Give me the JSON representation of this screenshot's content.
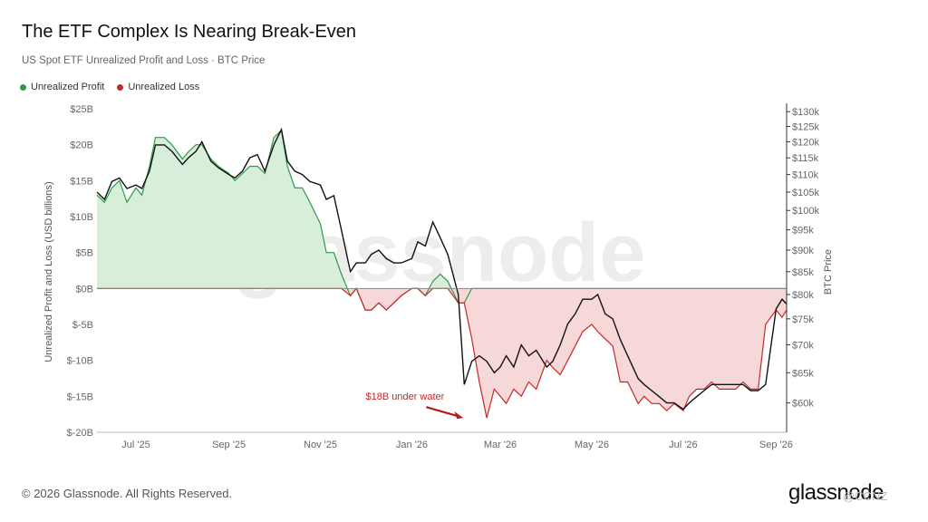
{
  "header": {
    "title": "The ETF Complex Is Nearing Break-Even",
    "subtitle": "US Spot ETF Unrealized Profit and Loss · BTC Price"
  },
  "legend": {
    "profit_label": "Unrealized Profit",
    "loss_label": "Unrealized Loss"
  },
  "colors": {
    "profit": "#2e9a46",
    "profit_fill": "#d7eedb",
    "loss": "#c62828",
    "loss_fill": "#f6d8d8",
    "btc": "#111111",
    "zero_line": "#888888"
  },
  "watermark": "glassnode",
  "annotation": {
    "text": "$18B under water",
    "date": "2026-02-05",
    "value": -18
  },
  "footer": {
    "copyright": "© 2026 Glassnode. All Rights Reserved.",
    "logo": "glassnode",
    "mark": "@CCNZ"
  },
  "chart_data": {
    "type": "line",
    "x_axis": {
      "ticks": [
        "Jul '25",
        "Sep '25",
        "Nov '25",
        "Jan '26",
        "Mar '26",
        "May '26",
        "Jul '26",
        "Sep '26"
      ],
      "tick_dates": [
        "2025-07-01",
        "2025-09-01",
        "2025-11-01",
        "2026-01-01",
        "2026-03-01",
        "2026-05-01",
        "2026-07-01",
        "2026-09-01"
      ],
      "range": [
        "2025-06-05",
        "2026-09-08"
      ]
    },
    "y_left": {
      "label": "Unrealized Profit and Loss (USD billions)",
      "ticks": [
        "$25B",
        "$20B",
        "$15B",
        "$10B",
        "$5B",
        "$0B",
        "$-5B",
        "$-10B",
        "$-15B",
        "$-20B"
      ],
      "tick_values": [
        25,
        20,
        15,
        10,
        5,
        0,
        -5,
        -10,
        -15,
        -20
      ],
      "range": [
        -20,
        25
      ]
    },
    "y_right": {
      "label": "BTC Price",
      "ticks": [
        "$130k",
        "$125k",
        "$120k",
        "$115k",
        "$110k",
        "$105k",
        "$100k",
        "$95k",
        "$90k",
        "$85k",
        "$80k",
        "$75k",
        "$70k",
        "$65k",
        "$60k"
      ],
      "tick_values": [
        130,
        125,
        120,
        115,
        110,
        105,
        100,
        95,
        90,
        85,
        80,
        75,
        70,
        65,
        60
      ],
      "scale": "log",
      "range": [
        55.5,
        131
      ]
    },
    "grid": false,
    "legend_position": "top-left",
    "series": [
      {
        "name": "Unrealized Profit",
        "axis": "left",
        "dates": [
          "2025-06-05",
          "2025-06-10",
          "2025-06-15",
          "2025-06-20",
          "2025-06-25",
          "2025-07-01",
          "2025-07-05",
          "2025-07-10",
          "2025-07-14",
          "2025-07-20",
          "2025-07-25",
          "2025-08-01",
          "2025-08-05",
          "2025-08-10",
          "2025-08-14",
          "2025-08-20",
          "2025-08-25",
          "2025-09-01",
          "2025-09-05",
          "2025-09-10",
          "2025-09-15",
          "2025-09-20",
          "2025-09-25",
          "2025-10-01",
          "2025-10-06",
          "2025-10-10",
          "2025-10-15",
          "2025-10-20",
          "2025-10-25",
          "2025-11-01",
          "2025-11-05",
          "2025-11-10",
          "2025-11-15",
          "2025-11-21",
          "2025-11-25",
          "2025-12-01",
          "2025-12-05",
          "2025-12-10",
          "2025-12-15",
          "2025-12-20",
          "2025-12-25",
          "2026-01-01",
          "2026-01-05",
          "2026-01-10",
          "2026-01-15",
          "2026-01-20",
          "2026-01-25",
          "2026-02-01",
          "2026-02-05",
          "2026-02-10",
          "2026-02-15",
          "2026-02-20",
          "2026-02-25",
          "2026-03-01",
          "2026-03-05",
          "2026-03-10",
          "2026-03-15",
          "2026-03-20",
          "2026-03-25",
          "2026-04-01",
          "2026-04-05",
          "2026-04-10",
          "2026-04-15",
          "2026-04-20",
          "2026-04-25",
          "2026-05-01",
          "2026-05-05",
          "2026-05-10",
          "2026-05-15",
          "2026-05-20",
          "2026-05-25",
          "2026-06-01",
          "2026-06-05",
          "2026-06-10",
          "2026-06-15",
          "2026-06-20",
          "2026-06-25",
          "2026-07-01",
          "2026-07-05",
          "2026-07-10",
          "2026-07-15",
          "2026-07-20",
          "2026-07-25",
          "2026-08-01",
          "2026-08-05",
          "2026-08-10",
          "2026-08-15",
          "2026-08-20",
          "2026-08-25",
          "2026-09-01",
          "2026-09-05",
          "2026-09-08"
        ],
        "values": [
          13,
          12,
          14,
          15,
          12,
          14,
          13,
          17,
          21,
          21,
          20,
          18,
          19,
          20,
          20,
          18,
          17,
          16,
          15,
          16,
          17,
          17,
          16,
          21,
          22,
          17,
          14,
          14,
          12,
          9,
          5,
          5,
          2,
          -1,
          0,
          -3,
          -3,
          -2,
          -3,
          -2,
          -1,
          0,
          0,
          -1,
          1,
          2,
          1,
          -2,
          -2,
          0,
          0,
          0,
          0,
          0,
          0,
          0,
          0,
          0,
          0,
          0,
          0,
          0,
          0,
          0,
          0,
          0,
          0,
          0,
          0,
          0,
          0,
          0,
          0,
          0,
          0,
          0,
          0,
          0,
          0,
          0,
          0,
          0,
          0,
          0,
          0,
          0,
          0,
          0,
          0,
          0,
          0,
          0
        ]
      },
      {
        "name": "Unrealized Loss",
        "axis": "left",
        "dates": [
          "2025-06-05",
          "2025-06-10",
          "2025-06-15",
          "2025-06-20",
          "2025-06-25",
          "2025-07-01",
          "2025-07-05",
          "2025-07-10",
          "2025-07-14",
          "2025-07-20",
          "2025-07-25",
          "2025-08-01",
          "2025-08-05",
          "2025-08-10",
          "2025-08-14",
          "2025-08-20",
          "2025-08-25",
          "2025-09-01",
          "2025-09-05",
          "2025-09-10",
          "2025-09-15",
          "2025-09-20",
          "2025-09-25",
          "2025-10-01",
          "2025-10-06",
          "2025-10-10",
          "2025-10-15",
          "2025-10-20",
          "2025-10-25",
          "2025-11-01",
          "2025-11-05",
          "2025-11-10",
          "2025-11-15",
          "2025-11-21",
          "2025-11-25",
          "2025-12-01",
          "2025-12-05",
          "2025-12-10",
          "2025-12-15",
          "2025-12-20",
          "2025-12-25",
          "2026-01-01",
          "2026-01-05",
          "2026-01-10",
          "2026-01-15",
          "2026-01-20",
          "2026-01-25",
          "2026-02-01",
          "2026-02-05",
          "2026-02-10",
          "2026-02-15",
          "2026-02-20",
          "2026-02-25",
          "2026-03-01",
          "2026-03-05",
          "2026-03-10",
          "2026-03-15",
          "2026-03-20",
          "2026-03-25",
          "2026-04-01",
          "2026-04-05",
          "2026-04-10",
          "2026-04-15",
          "2026-04-20",
          "2026-04-25",
          "2026-05-01",
          "2026-05-05",
          "2026-05-10",
          "2026-05-15",
          "2026-05-20",
          "2026-05-25",
          "2026-06-01",
          "2026-06-05",
          "2026-06-10",
          "2026-06-15",
          "2026-06-20",
          "2026-06-25",
          "2026-07-01",
          "2026-07-05",
          "2026-07-10",
          "2026-07-15",
          "2026-07-20",
          "2026-07-25",
          "2026-08-01",
          "2026-08-05",
          "2026-08-10",
          "2026-08-15",
          "2026-08-20",
          "2026-08-25",
          "2026-09-01",
          "2026-09-05",
          "2026-09-08"
        ],
        "values": [
          0,
          0,
          0,
          0,
          0,
          0,
          0,
          0,
          0,
          0,
          0,
          0,
          0,
          0,
          0,
          0,
          0,
          0,
          0,
          0,
          0,
          0,
          0,
          0,
          0,
          0,
          0,
          0,
          0,
          0,
          0,
          0,
          0,
          -1,
          0,
          -3,
          -3,
          -2,
          -3,
          -2,
          -1,
          0,
          0,
          -1,
          0,
          0,
          0,
          -2,
          -2,
          -7,
          -13,
          -18,
          -14,
          -15,
          -16,
          -14,
          -15,
          -13,
          -14,
          -10,
          -11,
          -12,
          -10,
          -8,
          -6,
          -5,
          -6,
          -7,
          -8,
          -13,
          -13,
          -16,
          -15,
          -16,
          -16,
          -17,
          -16,
          -17,
          -15,
          -14,
          -14,
          -13,
          -14,
          -14,
          -14,
          -13,
          -14,
          -14,
          -5,
          -3,
          -4,
          -3
        ]
      },
      {
        "name": "BTC Price",
        "axis": "right",
        "dates": [
          "2025-06-05",
          "2025-06-10",
          "2025-06-15",
          "2025-06-20",
          "2025-06-25",
          "2025-07-01",
          "2025-07-05",
          "2025-07-10",
          "2025-07-14",
          "2025-07-20",
          "2025-07-25",
          "2025-08-01",
          "2025-08-05",
          "2025-08-10",
          "2025-08-14",
          "2025-08-20",
          "2025-08-25",
          "2025-09-01",
          "2025-09-05",
          "2025-09-10",
          "2025-09-15",
          "2025-09-20",
          "2025-09-25",
          "2025-10-01",
          "2025-10-06",
          "2025-10-10",
          "2025-10-15",
          "2025-10-20",
          "2025-10-25",
          "2025-11-01",
          "2025-11-05",
          "2025-11-10",
          "2025-11-15",
          "2025-11-21",
          "2025-11-25",
          "2025-12-01",
          "2025-12-05",
          "2025-12-10",
          "2025-12-15",
          "2025-12-20",
          "2025-12-25",
          "2026-01-01",
          "2026-01-05",
          "2026-01-10",
          "2026-01-15",
          "2026-01-20",
          "2026-01-25",
          "2026-02-01",
          "2026-02-05",
          "2026-02-10",
          "2026-02-15",
          "2026-02-20",
          "2026-02-25",
          "2026-03-01",
          "2026-03-05",
          "2026-03-10",
          "2026-03-15",
          "2026-03-20",
          "2026-03-25",
          "2026-04-01",
          "2026-04-05",
          "2026-04-10",
          "2026-04-15",
          "2026-04-20",
          "2026-04-25",
          "2026-05-01",
          "2026-05-05",
          "2026-05-10",
          "2026-05-15",
          "2026-05-20",
          "2026-05-25",
          "2026-06-01",
          "2026-06-05",
          "2026-06-10",
          "2026-06-15",
          "2026-06-20",
          "2026-06-25",
          "2026-07-01",
          "2026-07-05",
          "2026-07-10",
          "2026-07-15",
          "2026-07-20",
          "2026-07-25",
          "2026-08-01",
          "2026-08-05",
          "2026-08-10",
          "2026-08-15",
          "2026-08-20",
          "2026-08-25",
          "2026-09-01",
          "2026-09-05",
          "2026-09-08"
        ],
        "values": [
          105,
          103,
          108,
          109,
          106,
          107,
          106,
          111,
          119,
          119,
          117,
          113,
          115,
          117,
          120,
          114,
          112,
          110,
          109,
          111,
          115,
          116,
          111,
          119,
          124,
          114,
          111,
          110,
          108,
          107,
          103,
          104,
          95,
          85,
          87,
          87,
          89,
          90,
          88,
          87,
          87,
          88,
          92,
          91,
          97,
          93,
          89,
          80,
          63,
          67,
          68,
          67,
          65,
          66,
          68,
          66,
          70,
          68,
          69,
          66,
          67,
          70,
          74,
          76,
          79,
          79,
          80,
          76,
          75,
          71,
          68,
          64,
          63,
          62,
          61,
          60,
          60,
          59,
          60,
          61,
          62,
          63,
          63,
          63,
          63,
          63,
          62,
          62,
          63,
          77,
          79,
          78
        ]
      }
    ]
  }
}
